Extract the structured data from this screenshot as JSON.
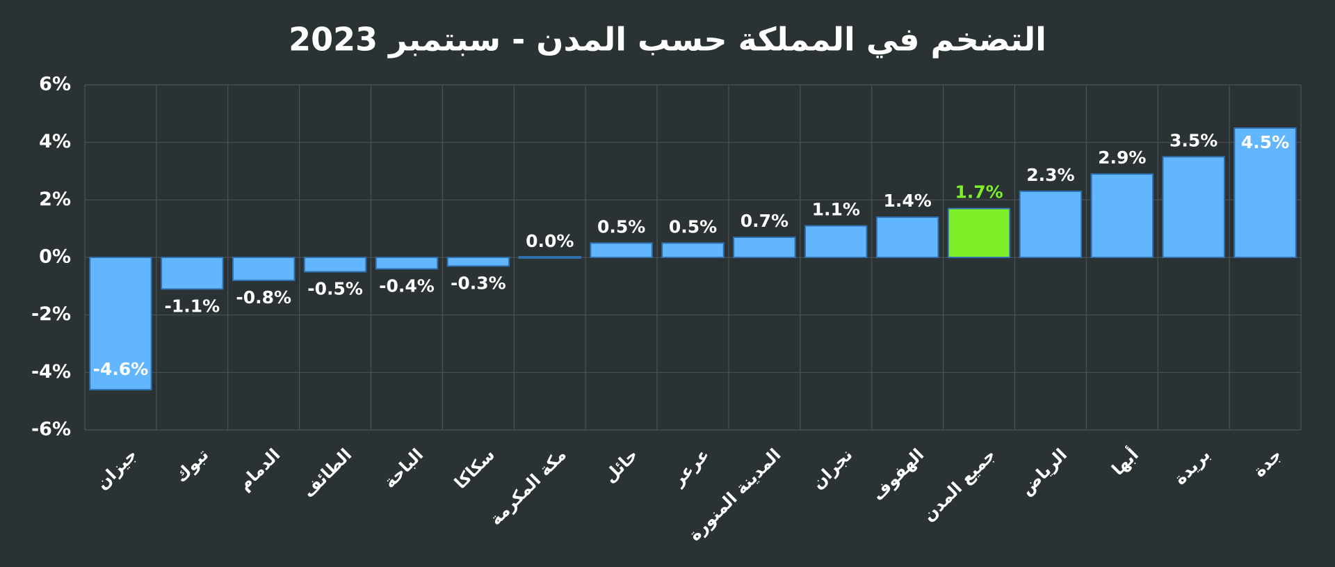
{
  "chart_data": {
    "type": "bar",
    "title": "التضخم في المملكة حسب المدن - سبتمبر 2023",
    "categories": [
      "جيزان",
      "تبوك",
      "الدمام",
      "الطائف",
      "الباحة",
      "سكاكا",
      "مكة المكرمة",
      "حائل",
      "عرعر",
      "المدينة المنورة",
      "نجران",
      "الهفوف",
      "جميع المدن",
      "الرياض",
      "أبها",
      "بريدة",
      "جدة"
    ],
    "values": [
      -4.6,
      -1.1,
      -0.8,
      -0.5,
      -0.4,
      -0.3,
      0.0,
      0.5,
      0.5,
      0.7,
      1.1,
      1.4,
      1.7,
      2.3,
      2.9,
      3.5,
      4.5
    ],
    "value_labels": [
      "-4.6%",
      "-1.1%",
      "-0.8%",
      "-0.5%",
      "-0.4%",
      "-0.3%",
      "0.0%",
      "0.5%",
      "0.5%",
      "0.7%",
      "1.1%",
      "1.4%",
      "1.7%",
      "2.3%",
      "2.9%",
      "3.5%",
      "4.5%"
    ],
    "color": "#62b6fd",
    "colors": [
      "#62b6fd",
      "#62b6fd",
      "#62b6fd",
      "#62b6fd",
      "#62b6fd",
      "#62b6fd",
      "#62b6fd",
      "#62b6fd",
      "#62b6fd",
      "#62b6fd",
      "#62b6fd",
      "#62b6fd",
      "#7ef02a",
      "#62b6fd",
      "#62b6fd",
      "#62b6fd",
      "#62b6fd"
    ],
    "ylim": [
      -6,
      6
    ],
    "yticks": [
      {
        "value": -6,
        "label": "-6%"
      },
      {
        "value": -4,
        "label": "-4%"
      },
      {
        "value": -2,
        "label": "-2%"
      },
      {
        "value": 0,
        "label": "0%"
      },
      {
        "value": 2,
        "label": "2%"
      },
      {
        "value": 4,
        "label": "4%"
      },
      {
        "value": 6,
        "label": "6%"
      }
    ],
    "grid": true
  }
}
